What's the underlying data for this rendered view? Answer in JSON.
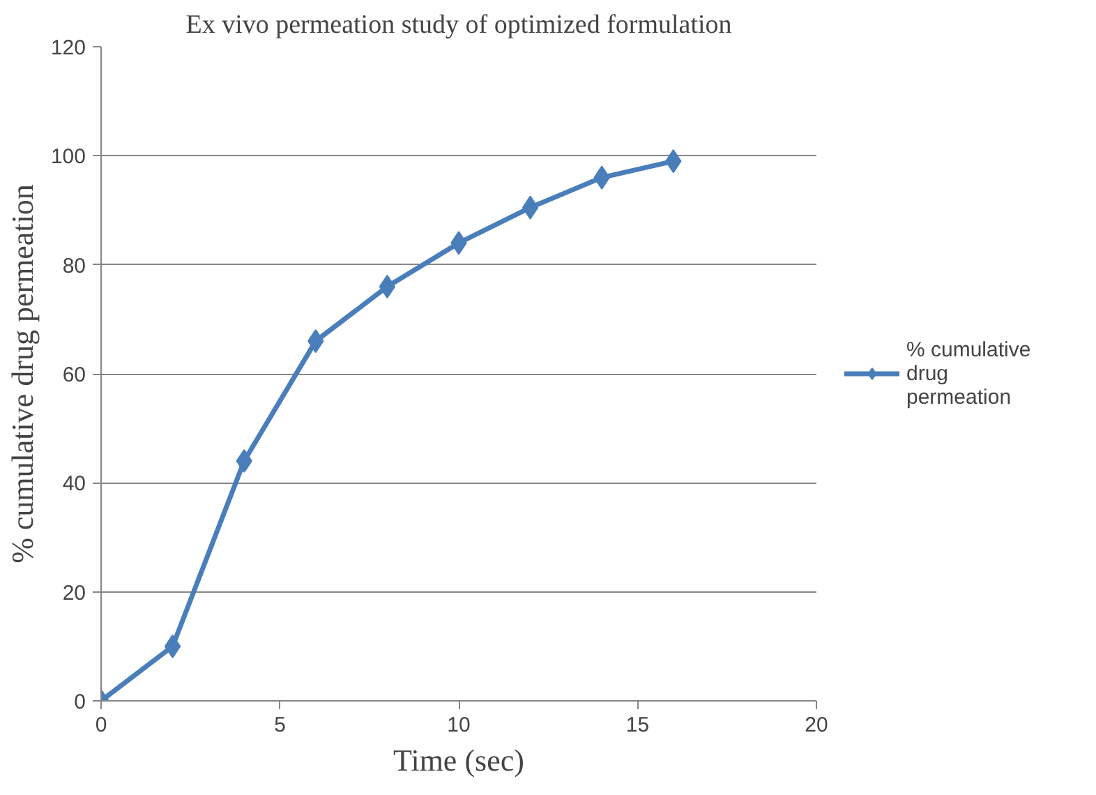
{
  "chart_data": {
    "type": "line",
    "title": "Ex vivo permeation study of optimized formulation",
    "xlabel": "Time (sec)",
    "ylabel": "% cumulative drug permeation",
    "x": [
      0,
      2,
      4,
      6,
      8,
      10,
      12,
      14,
      16
    ],
    "series": [
      {
        "name": "% cumulative drug permeation",
        "color": "#4a7ebb",
        "values": [
          0,
          10,
          44,
          66,
          76,
          84,
          90.5,
          96,
          99
        ]
      }
    ],
    "xlim": [
      0,
      20
    ],
    "xticks": [
      0,
      5,
      10,
      15,
      20
    ],
    "ylim": [
      0,
      120
    ],
    "yticks": [
      0,
      20,
      40,
      60,
      80,
      100,
      120
    ],
    "grid": "y",
    "legend": "right",
    "marker": "diamond",
    "line_style": "solid"
  }
}
